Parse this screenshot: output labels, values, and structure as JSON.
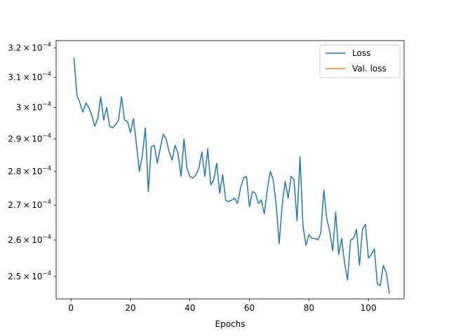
{
  "chart_data": {
    "type": "line",
    "xlabel": "Epochs",
    "ylabel": "",
    "title": "",
    "xlim": [
      -5,
      112
    ],
    "ylim": [
      0.000244,
      0.0003225
    ],
    "x_ticks": [
      0,
      20,
      40,
      60,
      80,
      100
    ],
    "x_tick_labels": [
      "0",
      "20",
      "40",
      "60",
      "80",
      "100"
    ],
    "y_ticks": [
      0.00025,
      0.00026,
      0.00027,
      0.00028,
      0.00029,
      0.0003,
      0.00031,
      0.00032
    ],
    "y_tick_labels": [
      {
        "mant": "2.5",
        "exp": "−4"
      },
      {
        "mant": "2.6",
        "exp": "−4"
      },
      {
        "mant": "2.7",
        "exp": "−4"
      },
      {
        "mant": "2.8",
        "exp": "−4"
      },
      {
        "mant": "2.9",
        "exp": "−4"
      },
      {
        "mant": "3",
        "exp": "−4"
      },
      {
        "mant": "3.1",
        "exp": "−4"
      },
      {
        "mant": "3.2",
        "exp": "−4"
      }
    ],
    "y_scale": "log",
    "legend_position": "top-right",
    "series": [
      {
        "name": "Loss",
        "color": "#1f77b4",
        "x": [
          1,
          2,
          3,
          4,
          5,
          6,
          7,
          8,
          9,
          10,
          11,
          12,
          13,
          14,
          15,
          16,
          17,
          18,
          19,
          20,
          21,
          22,
          23,
          24,
          25,
          26,
          27,
          28,
          29,
          30,
          31,
          32,
          33,
          34,
          35,
          36,
          37,
          38,
          39,
          40,
          41,
          42,
          43,
          44,
          45,
          46,
          47,
          48,
          49,
          50,
          51,
          52,
          53,
          54,
          55,
          56,
          57,
          58,
          59,
          60,
          61,
          62,
          63,
          64,
          65,
          66,
          67,
          68,
          69,
          70,
          71,
          72,
          73,
          74,
          75,
          76,
          77,
          78,
          79,
          80,
          81,
          82,
          83,
          84,
          85,
          86,
          87,
          88,
          89,
          90,
          91,
          92,
          93,
          94,
          95,
          96,
          97,
          98,
          99,
          100,
          101,
          102,
          103,
          104,
          105,
          106,
          107
        ],
        "y": [
          0.0003165,
          0.000304,
          0.0003015,
          0.0002985,
          0.0003015,
          0.0003,
          0.0002975,
          0.000294,
          0.0002965,
          0.0003035,
          0.000296,
          0.0003,
          0.000294,
          0.0002935,
          0.0002945,
          0.000296,
          0.0003035,
          0.000296,
          0.0002955,
          0.000292,
          0.0002965,
          0.0002885,
          0.00028,
          0.000285,
          0.0002935,
          0.000274,
          0.0002875,
          0.000288,
          0.0002825,
          0.000287,
          0.0002915,
          0.00029,
          0.000286,
          0.0002835,
          0.000288,
          0.0002855,
          0.0002785,
          0.00029,
          0.000281,
          0.0002785,
          0.000278,
          0.000279,
          0.000281,
          0.000286,
          0.0002785,
          0.000287,
          0.000276,
          0.0002775,
          0.0002825,
          0.0002735,
          0.000279,
          0.0002715,
          0.000271,
          0.0002715,
          0.000272,
          0.0002705,
          0.000275,
          0.000278,
          0.0002785,
          0.0002695,
          0.000274,
          0.0002735,
          0.0002705,
          0.0002715,
          0.0002675,
          0.0002745,
          0.00028,
          0.0002775,
          0.00027,
          0.000259,
          0.00027,
          0.000277,
          0.000272,
          0.0002785,
          0.0002775,
          0.0002655,
          0.0002845,
          0.000264,
          0.0002585,
          0.0002615,
          0.0002605,
          0.0002605,
          0.00026,
          0.000262,
          0.0002745,
          0.000266,
          0.0002625,
          0.000257,
          0.000268,
          0.000256,
          0.0002605,
          0.0002535,
          0.000249,
          0.00026,
          0.0002605,
          0.000263,
          0.000253,
          0.000263,
          0.0002645,
          0.000255,
          0.000256,
          0.0002575,
          0.000248,
          0.0002475,
          0.000253,
          0.000251,
          0.0002455
        ]
      },
      {
        "name": "Val. loss",
        "color": "#ff7f0e",
        "x": [],
        "y": []
      }
    ]
  }
}
